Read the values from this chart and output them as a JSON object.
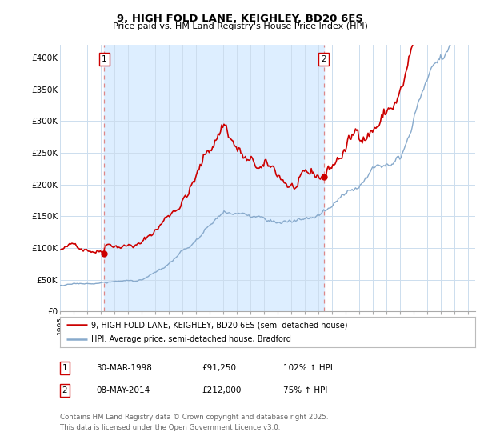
{
  "title_line1": "9, HIGH FOLD LANE, KEIGHLEY, BD20 6ES",
  "title_line2": "Price paid vs. HM Land Registry's House Price Index (HPI)",
  "ylim": [
    0,
    420000
  ],
  "yticks": [
    0,
    50000,
    100000,
    150000,
    200000,
    250000,
    300000,
    350000,
    400000
  ],
  "ytick_labels": [
    "£0",
    "£50K",
    "£100K",
    "£150K",
    "£200K",
    "£250K",
    "£300K",
    "£350K",
    "£400K"
  ],
  "sale_date_nums": [
    1998.247,
    2014.37
  ],
  "sale_prices": [
    91250,
    212000
  ],
  "sale_labels": [
    "1",
    "2"
  ],
  "red_color": "#cc0000",
  "blue_color": "#88aacc",
  "vline_color": "#dd8888",
  "shade_color": "#ddeeff",
  "legend_line1": "9, HIGH FOLD LANE, KEIGHLEY, BD20 6ES (semi-detached house)",
  "legend_line2": "HPI: Average price, semi-detached house, Bradford",
  "table_rows": [
    {
      "label": "1",
      "date": "30-MAR-1998",
      "price": "£91,250",
      "note": "102% ↑ HPI"
    },
    {
      "label": "2",
      "date": "08-MAY-2014",
      "price": "£212,000",
      "note": "75% ↑ HPI"
    }
  ],
  "footer": "Contains HM Land Registry data © Crown copyright and database right 2025.\nThis data is licensed under the Open Government Licence v3.0.",
  "background_color": "#ffffff",
  "grid_color": "#ccddee"
}
